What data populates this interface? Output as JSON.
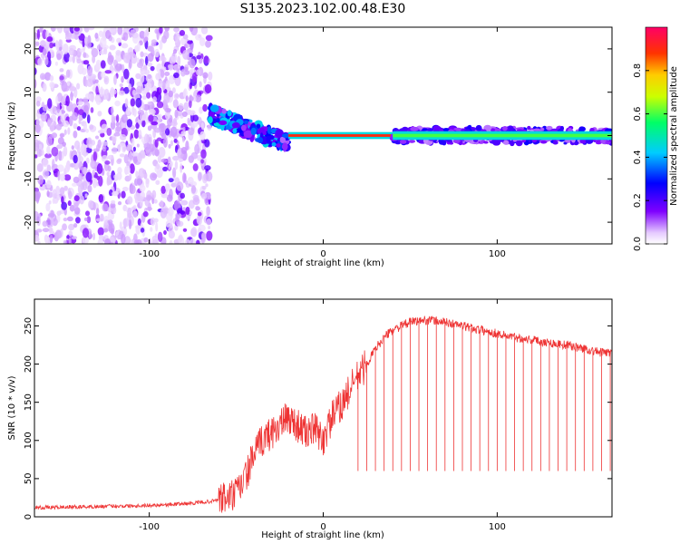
{
  "title": "S135.2023.102.00.48.E30",
  "colors": {
    "snr_line": "#ee3333",
    "axes": "#000000",
    "background": "#ffffff"
  },
  "chart_data": [
    {
      "type": "heatmap",
      "name_hint": "spectrogram",
      "xlabel": "Height of straight line (km)",
      "ylabel": "Frequency (Hz)",
      "xlim": [
        -166,
        166
      ],
      "ylim": [
        -25,
        25
      ],
      "xticks": [
        -100,
        0,
        100
      ],
      "xtick_labels": [
        "-100",
        "0",
        "100"
      ],
      "yticks": [
        -20,
        -10,
        0,
        10,
        20
      ],
      "ytick_labels": [
        "-20",
        "-10",
        "0",
        "10",
        "20"
      ],
      "colorbar": {
        "label": "Normalized spectral amplitude",
        "range": [
          0,
          1
        ],
        "ticks": [
          0.0,
          0.2,
          0.4,
          0.6,
          0.8
        ],
        "tick_labels": [
          "0.0",
          "0.2",
          "0.4",
          "0.6",
          "0.8"
        ],
        "colormap": "rainbow"
      },
      "regions": [
        {
          "desc": "diffuse noise",
          "x": [
            -166,
            -65
          ],
          "freq_range": [
            -25,
            25
          ],
          "amplitude": 0.1
        },
        {
          "desc": "transition",
          "x": [
            -65,
            -20
          ],
          "freq_range": [
            -5,
            5
          ],
          "amplitude": 0.4
        },
        {
          "desc": "narrow carrier",
          "x": [
            -20,
            40
          ],
          "freq": 0,
          "amplitude": 0.9
        },
        {
          "desc": "carrier band",
          "x": [
            40,
            166
          ],
          "freq": 0,
          "width_hz": 2,
          "amplitude": 0.6
        }
      ]
    },
    {
      "type": "line",
      "xlabel": "Height of straight line (km)",
      "ylabel": "SNR (10 * v/v)",
      "xlim": [
        -166,
        166
      ],
      "ylim": [
        0,
        285
      ],
      "xticks": [
        -100,
        0,
        100
      ],
      "xtick_labels": [
        "-100",
        "0",
        "100"
      ],
      "yticks": [
        0,
        50,
        100,
        150,
        200,
        250
      ],
      "ytick_labels": [
        "0",
        "50",
        "100",
        "150",
        "200",
        "250"
      ],
      "series": [
        {
          "x": [
            -166,
            -140,
            -120,
            -100,
            -80,
            -65,
            -55,
            -50,
            -45,
            -40,
            -35,
            -30,
            -25,
            -20,
            -15,
            -10,
            -5,
            0,
            5,
            10,
            15,
            20,
            25,
            30,
            35,
            40,
            50,
            60,
            70,
            80,
            90,
            100,
            110,
            120,
            130,
            140,
            150,
            160,
            166
          ],
          "values": [
            12,
            13,
            14,
            15,
            17,
            20,
            25,
            30,
            50,
            80,
            100,
            110,
            120,
            130,
            120,
            110,
            115,
            100,
            130,
            145,
            165,
            185,
            200,
            220,
            235,
            245,
            255,
            258,
            255,
            250,
            245,
            240,
            235,
            232,
            228,
            225,
            220,
            215,
            215
          ]
        }
      ],
      "dropouts_x": [
        20,
        25,
        30,
        35,
        40,
        45,
        50,
        55,
        60,
        65,
        70,
        75,
        80,
        85,
        90,
        95,
        100,
        105,
        110,
        115,
        120,
        125,
        130,
        135,
        140,
        145,
        150,
        155,
        160,
        165
      ],
      "dropout_floor": 60
    }
  ]
}
